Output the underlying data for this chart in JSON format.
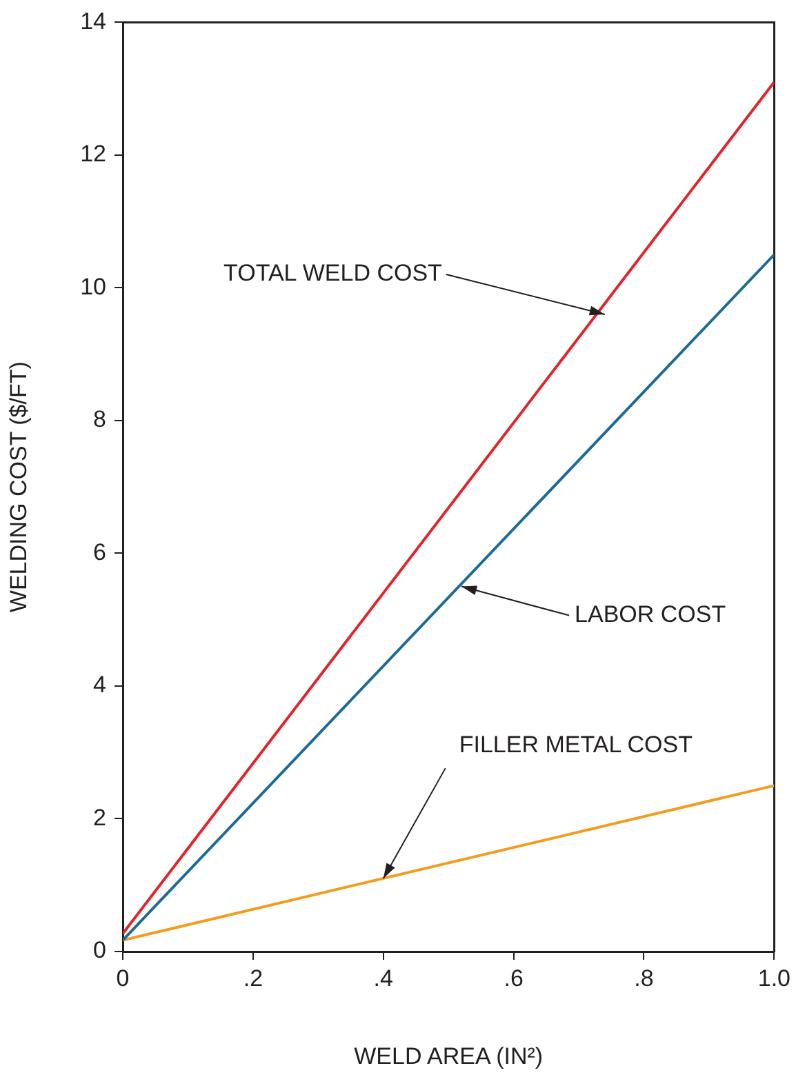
{
  "chart_data": {
    "type": "line",
    "xlabel": "WELD AREA (IN²)",
    "ylabel": "WELDING COST ($/FT)",
    "series": [
      {
        "color": "#e32229",
        "values": [
          0.27,
          13.1
        ]
      },
      {
        "color": "#1b6a99",
        "values": [
          0.17,
          10.5
        ]
      },
      {
        "color": "#f39c1d",
        "values": [
          0.17,
          2.5
        ]
      }
    ],
    "x": [
      0,
      1.0
    ],
    "xlim": [
      0,
      1.0
    ],
    "xticks": [
      0,
      {
        "value": 0.2,
        "label": ".2"
      },
      {
        "value": 0.4,
        "label": ".4"
      },
      {
        "value": 0.6,
        "label": ".6"
      },
      {
        "value": 0.8,
        "label": ".8"
      },
      {
        "value": 1.0,
        "label": "1.0"
      }
    ],
    "ylim": [
      0,
      14
    ],
    "yticks": [
      0,
      2,
      4,
      6,
      8,
      10,
      12,
      14
    ],
    "grid": false,
    "legend": false,
    "marker": "none",
    "line_style": "solid",
    "annotations": [
      {
        "text": "TOTAL WELD COST",
        "x": 0.74,
        "y": 9.6
      },
      {
        "text": "LABOR COST",
        "x": 0.52,
        "y": 5.5
      },
      {
        "text": "FILLER METAL COST",
        "x": 0.4,
        "y": 1.1
      }
    ]
  }
}
